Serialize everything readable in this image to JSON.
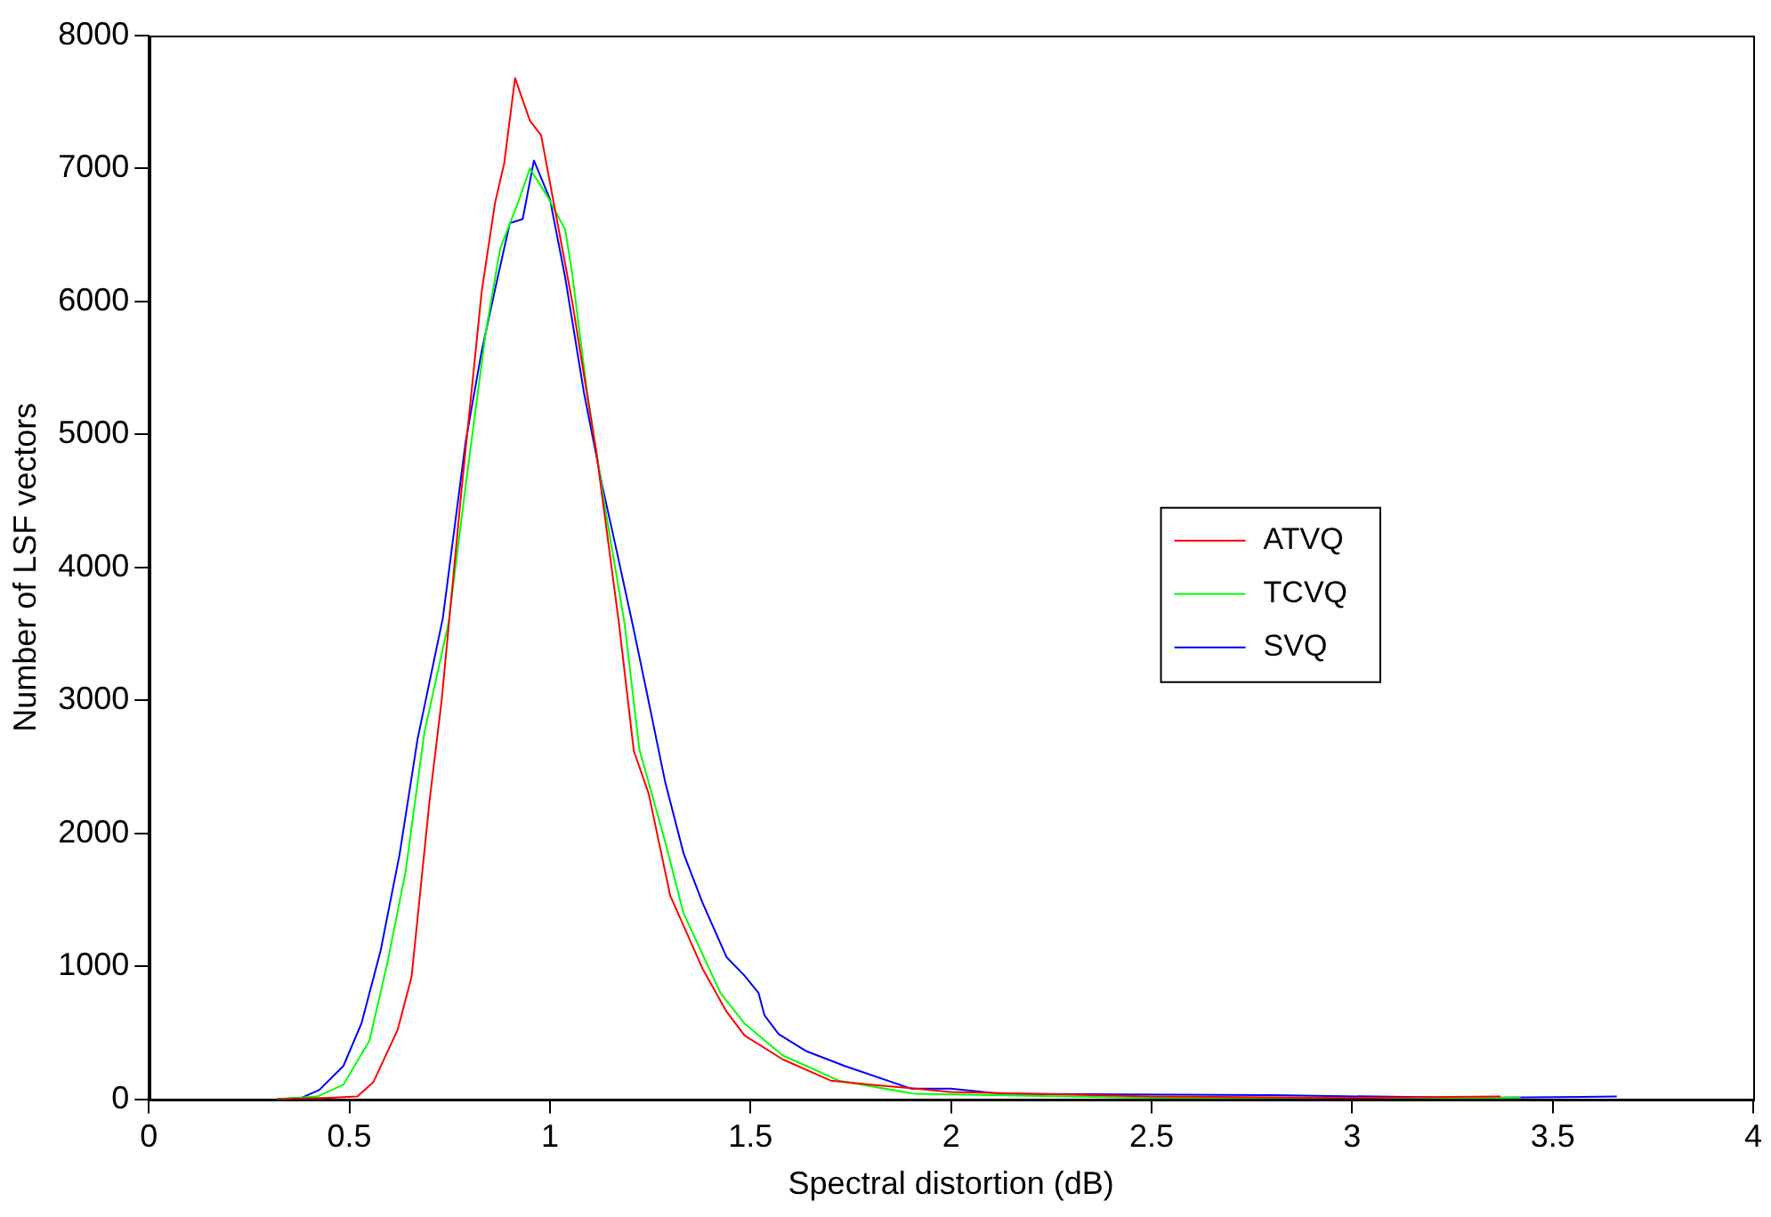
{
  "chart_data": {
    "type": "line",
    "xlabel": "Spectral distortion (dB)",
    "ylabel": "Number of LSF vectors",
    "xlim": [
      0,
      4
    ],
    "xticks": [
      0,
      0.5,
      1,
      1.5,
      2,
      2.5,
      3,
      3.5,
      4
    ],
    "ylim": [
      0,
      8000
    ],
    "yticks": [
      0,
      1000,
      2000,
      3000,
      4000,
      5000,
      6000,
      7000,
      8000
    ],
    "grid": false,
    "legend": "right",
    "marker": "none",
    "line_style": "solid",
    "series": [
      {
        "name": "ATVQ",
        "color": "#ff0000",
        "x": [
          0.32,
          0.45,
          0.52,
          0.56,
          0.62,
          0.655,
          0.7,
          0.73,
          0.78,
          0.83,
          0.863,
          0.886,
          0.913,
          0.95,
          0.978,
          1.056,
          1.116,
          1.172,
          1.209,
          1.246,
          1.3,
          1.38,
          1.44,
          1.485,
          1.58,
          1.7,
          1.8,
          2.0,
          2.5,
          3.0,
          3.37
        ],
        "values": [
          0,
          10,
          20,
          130,
          520,
          920,
          2250,
          3000,
          4600,
          6080,
          6740,
          7040,
          7680,
          7360,
          7250,
          5990,
          4860,
          3580,
          2620,
          2300,
          1530,
          985,
          660,
          480,
          300,
          140,
          110,
          55,
          20,
          10,
          20
        ]
      },
      {
        "name": "TCVQ",
        "color": "#00ff00",
        "x": [
          0.32,
          0.42,
          0.485,
          0.55,
          0.595,
          0.64,
          0.687,
          0.747,
          0.79,
          0.84,
          0.876,
          0.92,
          0.95,
          0.992,
          1.038,
          1.055,
          1.093,
          1.14,
          1.186,
          1.223,
          1.287,
          1.333,
          1.425,
          1.485,
          1.58,
          1.72,
          1.91,
          2.5,
          3.0,
          3.42
        ],
        "values": [
          0,
          20,
          110,
          440,
          1030,
          1710,
          2760,
          3580,
          4620,
          5770,
          6400,
          6740,
          7000,
          6800,
          6540,
          6220,
          5310,
          4400,
          3580,
          2630,
          1940,
          1400,
          800,
          570,
          330,
          140,
          40,
          10,
          10,
          10
        ]
      },
      {
        "name": "SVQ",
        "color": "#0000ff",
        "x": [
          0.32,
          0.38,
          0.425,
          0.485,
          0.53,
          0.578,
          0.625,
          0.67,
          0.733,
          0.79,
          0.83,
          0.863,
          0.9,
          0.932,
          0.96,
          1.0,
          1.038,
          1.085,
          1.13,
          1.163,
          1.209,
          1.24,
          1.287,
          1.333,
          1.38,
          1.44,
          1.485,
          1.52,
          1.535,
          1.57,
          1.64,
          1.735,
          1.9,
          2.0,
          2.13,
          2.8,
          3.3,
          3.66
        ],
        "values": [
          0,
          10,
          70,
          250,
          570,
          1120,
          1840,
          2710,
          3620,
          4950,
          5630,
          6090,
          6590,
          6620,
          7060,
          6770,
          6180,
          5310,
          4620,
          4170,
          3530,
          3080,
          2390,
          1850,
          1480,
          1070,
          930,
          800,
          630,
          490,
          360,
          250,
          80,
          80,
          40,
          30,
          10,
          20
        ]
      }
    ]
  }
}
